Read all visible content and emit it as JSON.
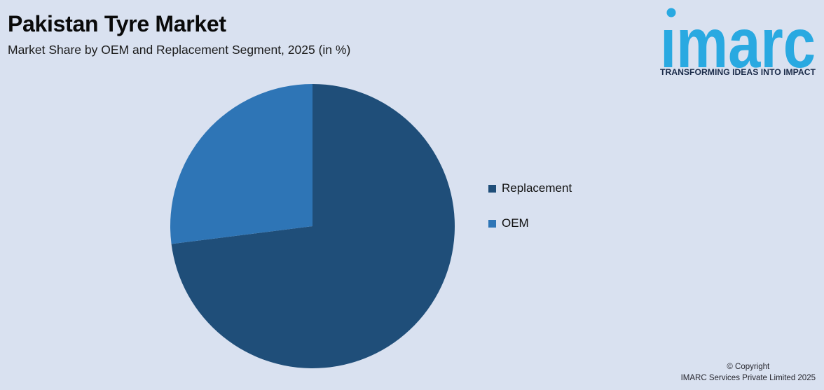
{
  "page": {
    "background": "#D9E1F0"
  },
  "header": {
    "title": "Pakistan Tyre Market",
    "subtitle": "Market Share by OEM and Replacement Segment, 2025 (in %)"
  },
  "logo": {
    "wordmark": "imarc",
    "tagline": "TRANSFORMING IDEAS INTO IMPACT",
    "color": "#29A9E1",
    "tagline_color": "#1B2B49"
  },
  "chart_data": {
    "type": "pie",
    "title": "Pakistan Tyre Market",
    "subtitle": "Market Share by OEM and Replacement Segment, 2025 (in %)",
    "labels": [
      "Replacement",
      "OEM"
    ],
    "values": [
      73,
      27
    ],
    "unit": "%",
    "colors": [
      "#1F4E79",
      "#2E75B6"
    ],
    "start_angle_deg": 0,
    "direction": "clockwise",
    "legend_position": "right",
    "data_labels_shown": false,
    "background": "#D9E1F0"
  },
  "footer": {
    "copyright_line1": "© Copyright",
    "copyright_line2": "IMARC Services Private Limited 2025"
  }
}
